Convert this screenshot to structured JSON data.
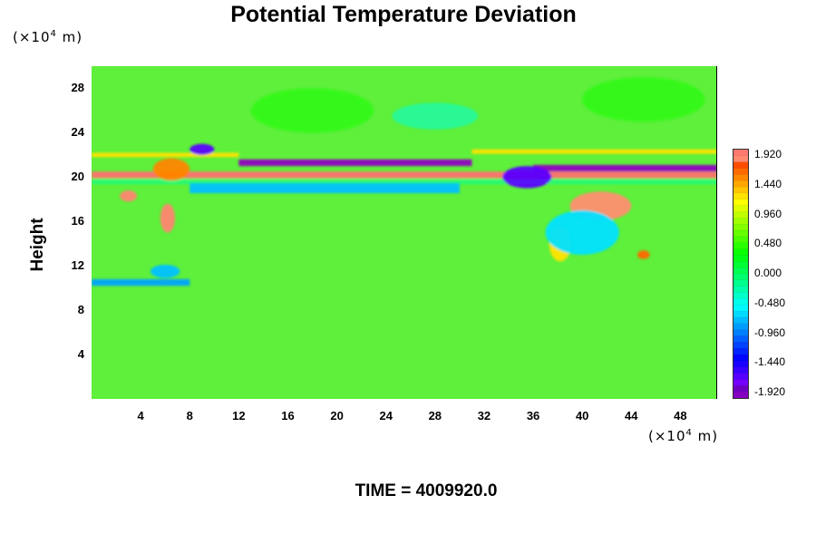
{
  "chart_data": {
    "type": "heatmap",
    "title": "Potential Temperature Deviation",
    "ylabel": "Height",
    "x_unit": {
      "base": "(×10",
      "exp": "4",
      "rest": " m)"
    },
    "y_unit": {
      "base": "(×10",
      "exp": "4",
      "rest": " m)"
    },
    "xlim": [
      0,
      51
    ],
    "ylim": [
      0,
      30
    ],
    "x_ticks": [
      "4",
      "8",
      "12",
      "16",
      "20",
      "24",
      "28",
      "32",
      "36",
      "40",
      "44",
      "48"
    ],
    "y_ticks": [
      "4",
      "8",
      "12",
      "16",
      "20",
      "24",
      "28"
    ],
    "colorbar": {
      "min": -1.92,
      "max": 1.92,
      "tick_labels": [
        "1.920",
        "1.440",
        "0.960",
        "0.480",
        "0.000",
        "-0.480",
        "-0.960",
        "-1.440",
        "-1.920"
      ]
    },
    "features": [
      {
        "type": "band",
        "y": 20.2,
        "thickness": 0.6,
        "x_from": 0,
        "x_to": 51,
        "value": 1.92
      },
      {
        "type": "band",
        "y": 19.6,
        "thickness": 0.5,
        "x_from": 0,
        "x_to": 51,
        "value": -0.2
      },
      {
        "type": "band",
        "y": 21.3,
        "thickness": 0.6,
        "x_from": 12,
        "x_to": 31,
        "value": -1.92
      },
      {
        "type": "band",
        "y": 20.8,
        "thickness": 0.6,
        "x_from": 36,
        "x_to": 51,
        "value": -1.92
      },
      {
        "type": "band",
        "y": 19.0,
        "thickness": 0.9,
        "x_from": 8,
        "x_to": 30,
        "value": -0.7
      },
      {
        "type": "band",
        "y": 10.5,
        "thickness": 0.6,
        "x_from": 0,
        "x_to": 8,
        "value": -0.8
      },
      {
        "type": "band",
        "y": 22.3,
        "thickness": 0.4,
        "x_from": 31,
        "x_to": 51,
        "value": 1.2
      },
      {
        "type": "band",
        "y": 22.0,
        "thickness": 0.4,
        "x_from": 0,
        "x_to": 12,
        "value": 1.2
      },
      {
        "type": "blob",
        "x": 41.5,
        "y": 17.4,
        "rx": 2.5,
        "ry": 1.3,
        "value": 1.75
      },
      {
        "type": "blob",
        "x": 6.2,
        "y": 16.3,
        "rx": 0.6,
        "ry": 1.3,
        "value": 1.8
      },
      {
        "type": "blob",
        "x": 3.0,
        "y": 18.3,
        "rx": 0.7,
        "ry": 0.5,
        "value": 1.8
      },
      {
        "type": "blob",
        "x": 38.2,
        "y": 14.0,
        "rx": 0.9,
        "ry": 1.6,
        "value": 1.2
      },
      {
        "type": "blob",
        "x": 45.0,
        "y": 13.0,
        "rx": 0.5,
        "ry": 0.4,
        "value": 1.6
      },
      {
        "type": "blob",
        "x": 35.5,
        "y": 20.0,
        "rx": 2.0,
        "ry": 1.0,
        "value": -1.6
      },
      {
        "type": "blob",
        "x": 6.5,
        "y": 20.7,
        "rx": 1.5,
        "ry": 1.0,
        "value": 1.5
      },
      {
        "type": "blob",
        "x": 9.0,
        "y": 22.5,
        "rx": 1.0,
        "ry": 0.5,
        "value": -1.6
      },
      {
        "type": "blob",
        "x": 6.0,
        "y": 11.5,
        "rx": 1.2,
        "ry": 0.6,
        "value": -0.7
      },
      {
        "type": "blob",
        "x": 18.0,
        "y": 26.0,
        "rx": 5.0,
        "ry": 2.0,
        "value": 0.35
      },
      {
        "type": "blob",
        "x": 28.0,
        "y": 25.5,
        "rx": 3.5,
        "ry": 1.2,
        "value": -0.4
      },
      {
        "type": "blob",
        "x": 45.0,
        "y": 27.0,
        "rx": 5.0,
        "ry": 2.0,
        "value": 0.35
      },
      {
        "type": "blob",
        "x": 40.0,
        "y": 15.0,
        "rx": 3.0,
        "ry": 2.0,
        "value": -0.6
      }
    ],
    "time_label": "TIME = 4009920.0"
  }
}
